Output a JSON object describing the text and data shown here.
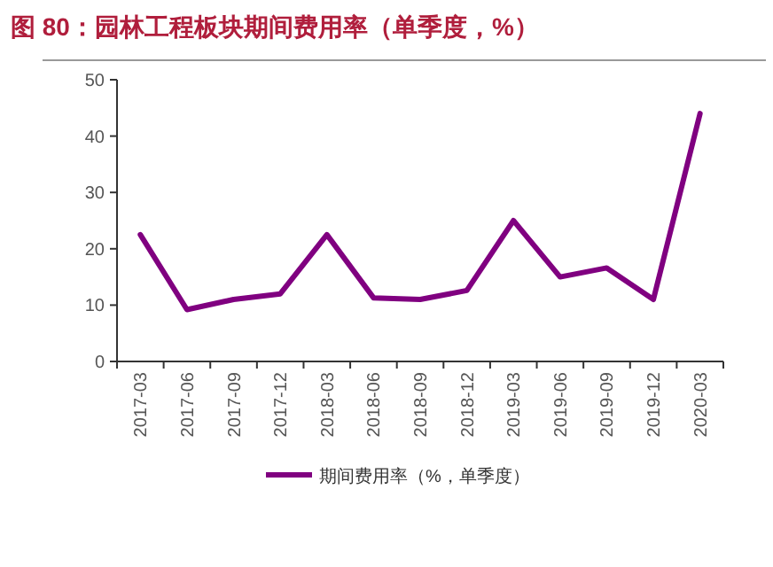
{
  "chart_data": {
    "type": "line",
    "title": "图 80：园林工程板块期间费用率（单季度，%）",
    "categories": [
      "2017-03",
      "2017-06",
      "2017-09",
      "2017-12",
      "2018-03",
      "2018-06",
      "2018-09",
      "2018-12",
      "2019-03",
      "2019-06",
      "2019-09",
      "2019-12",
      "2020-03"
    ],
    "series": [
      {
        "name": "期间费用率（%，单季度）",
        "color": "#800080",
        "values": [
          22.5,
          9.2,
          11,
          12,
          22.5,
          11.3,
          11,
          12.6,
          25,
          15,
          16.6,
          11,
          44
        ]
      }
    ],
    "ylim": [
      0,
      50
    ],
    "yticks": [
      0,
      10,
      20,
      30,
      40,
      50
    ],
    "grid": false,
    "legend": "bottom",
    "marker": "none",
    "line_style": "solid"
  }
}
